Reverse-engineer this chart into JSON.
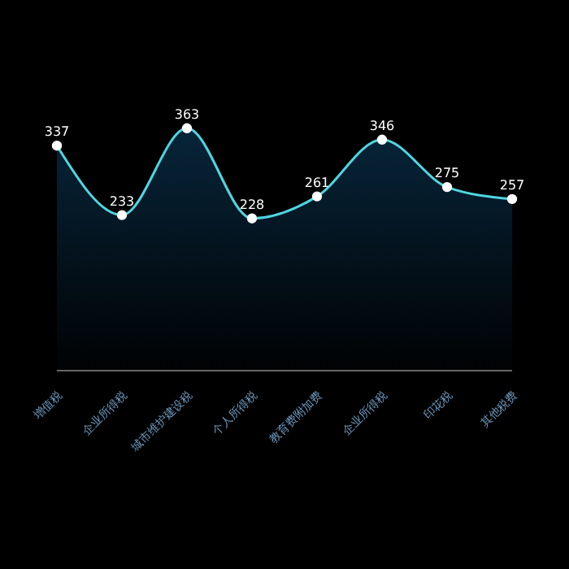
{
  "chart_data": {
    "type": "area",
    "categories": [
      "增值税",
      "企业所得税",
      "城市维护建设税",
      "个人所得税",
      "教育费附加费",
      "企业所得税",
      "印花税",
      "其他税费"
    ],
    "series": [
      {
        "color": "#4fd6e0",
        "values": [
          337,
          233,
          363,
          228,
          261,
          346,
          275,
          257
        ]
      }
    ],
    "tick_labels": "x",
    "data_labels": true,
    "marker": "circle"
  }
}
